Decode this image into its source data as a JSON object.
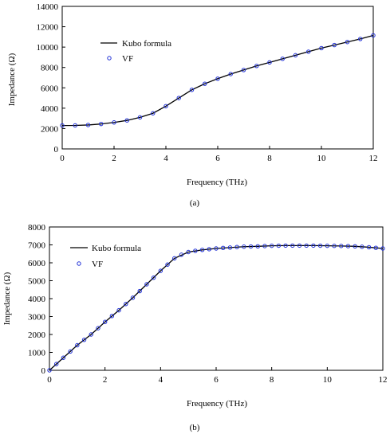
{
  "chart_data": [
    {
      "type": "line",
      "caption": "(a)",
      "xlabel": "Frequency (THz)",
      "ylabel": "Impedance (Ω)",
      "xlim": [
        0,
        12
      ],
      "ylim": [
        0,
        14000
      ],
      "xticks": [
        0,
        2,
        4,
        6,
        8,
        10,
        12
      ],
      "yticks": [
        0,
        2000,
        4000,
        6000,
        8000,
        10000,
        12000,
        14000
      ],
      "legend_position": "top-left",
      "series": [
        {
          "name": "Kubo formula",
          "style": "line",
          "color": "#000000",
          "x": [
            0,
            0.5,
            1,
            1.5,
            2,
            2.5,
            3,
            3.5,
            4,
            4.5,
            5,
            5.5,
            6,
            6.5,
            7,
            7.5,
            8,
            8.5,
            9,
            9.5,
            10,
            10.5,
            11,
            11.5,
            12
          ],
          "y": [
            2300,
            2310,
            2350,
            2450,
            2600,
            2800,
            3100,
            3500,
            4200,
            5000,
            5800,
            6400,
            6900,
            7350,
            7750,
            8150,
            8500,
            8850,
            9200,
            9550,
            9900,
            10200,
            10500,
            10800,
            11150
          ]
        },
        {
          "name": "VF",
          "style": "markers",
          "color": "#1f2fd6",
          "x": [
            0,
            0.5,
            1,
            1.5,
            2,
            2.5,
            3,
            3.5,
            4,
            4.5,
            5,
            5.5,
            6,
            6.5,
            7,
            7.5,
            8,
            8.5,
            9,
            9.5,
            10,
            10.5,
            11,
            11.5,
            12
          ],
          "y": [
            2300,
            2310,
            2350,
            2450,
            2600,
            2800,
            3100,
            3500,
            4200,
            5000,
            5800,
            6400,
            6900,
            7350,
            7750,
            8150,
            8500,
            8850,
            9200,
            9550,
            9900,
            10200,
            10500,
            10800,
            11150
          ]
        }
      ]
    },
    {
      "type": "line",
      "caption": "(b)",
      "xlabel": "Frequency (THz)",
      "ylabel": "Impedance (Ω)",
      "xlim": [
        0,
        12
      ],
      "ylim": [
        0,
        8000
      ],
      "xticks": [
        0,
        2,
        4,
        6,
        8,
        10,
        12
      ],
      "yticks": [
        0,
        1000,
        2000,
        3000,
        4000,
        5000,
        6000,
        7000,
        8000
      ],
      "legend_position": "top-left",
      "series": [
        {
          "name": "Kubo formula",
          "style": "line",
          "color": "#000000",
          "x": [
            0,
            0.5,
            1,
            1.5,
            2,
            2.5,
            3,
            3.5,
            4,
            4.5,
            5,
            5.5,
            6,
            6.5,
            7,
            7.5,
            8,
            8.5,
            9,
            9.5,
            10,
            10.5,
            11,
            11.5,
            12
          ],
          "y": [
            0,
            700,
            1400,
            2000,
            2700,
            3350,
            4050,
            4800,
            5550,
            6250,
            6600,
            6720,
            6800,
            6850,
            6900,
            6920,
            6950,
            6960,
            6960,
            6960,
            6950,
            6940,
            6920,
            6870,
            6800
          ]
        },
        {
          "name": "VF",
          "style": "markers",
          "color": "#1f2fd6",
          "x": [
            0,
            0.25,
            0.5,
            0.75,
            1,
            1.25,
            1.5,
            1.75,
            2,
            2.25,
            2.5,
            2.75,
            3,
            3.25,
            3.5,
            3.75,
            4,
            4.25,
            4.5,
            4.75,
            5,
            5.25,
            5.5,
            5.75,
            6,
            6.25,
            6.5,
            6.75,
            7,
            7.25,
            7.5,
            7.75,
            8,
            8.25,
            8.5,
            8.75,
            9,
            9.25,
            9.5,
            9.75,
            10,
            10.25,
            10.5,
            10.75,
            11,
            11.25,
            11.5,
            11.75,
            12
          ],
          "y": [
            0,
            350,
            700,
            1050,
            1400,
            1700,
            2000,
            2350,
            2700,
            3030,
            3350,
            3700,
            4050,
            4420,
            4800,
            5170,
            5550,
            5900,
            6250,
            6450,
            6600,
            6670,
            6720,
            6760,
            6800,
            6830,
            6850,
            6880,
            6900,
            6910,
            6920,
            6935,
            6950,
            6955,
            6960,
            6960,
            6960,
            6960,
            6960,
            6955,
            6950,
            6945,
            6940,
            6930,
            6920,
            6895,
            6870,
            6835,
            6800
          ]
        }
      ]
    }
  ]
}
